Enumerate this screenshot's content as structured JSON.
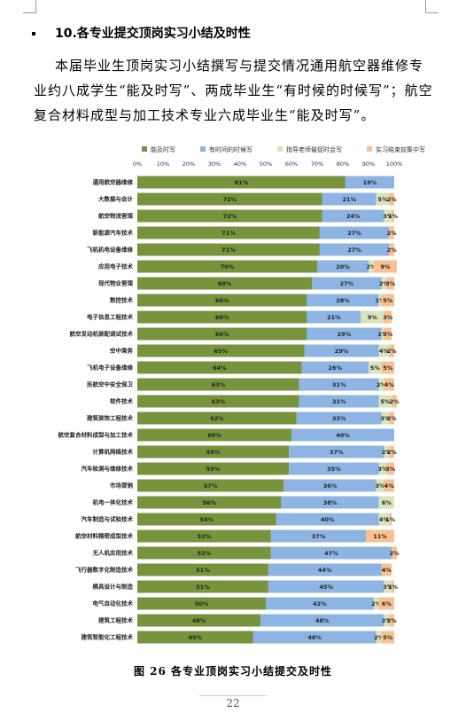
{
  "document": {
    "heading": "10.各专业提交顶岗实习小结及时性",
    "paragraph": "本届毕业生顶岗实习小结撰写与提交情况通用航空器维修专业约八成学生“能及时写”、两成毕业生“有时候的时候写”；航空复合材料成型与加工技术专业六成毕业生“能及时写”。",
    "caption": "图 26  各专业顶岗实习小结提交及时性",
    "page_number": "22"
  },
  "chart_data": {
    "type": "stacked-bar-horizontal",
    "legend": "top",
    "grid": false,
    "categories": [
      "通用航空器维修",
      "大数据与会计",
      "航空物流管理",
      "新能源汽车技术",
      "飞机机电设备维修",
      "应用电子技术",
      "现代物业管理",
      "数控技术",
      "电子信息工程技术",
      "航空发动机装配调试技术",
      "空中乘务",
      "飞机电子设备维修",
      "民航空中安全保卫",
      "软件技术",
      "建筑装饰工程技术",
      "航空复合材料成型与加工技术",
      "计算机网络技术",
      "汽车检测与维修技术",
      "市场营销",
      "机电一体化技术",
      "汽车制造与试验技术",
      "航空材料精密成型技术",
      "无人机应用技术",
      "飞行器数字化制造技术",
      "模具设计与制造",
      "电气自动化技术",
      "建筑工程技术",
      "建筑智能化工程技术"
    ],
    "xlim": [
      0,
      100
    ],
    "xticks": [
      {
        "value": 0,
        "label": "0%"
      },
      {
        "value": 10,
        "label": "10%"
      },
      {
        "value": 20,
        "label": "20%"
      },
      {
        "value": 30,
        "label": "30%"
      },
      {
        "value": 40,
        "label": "40%"
      },
      {
        "value": 50,
        "label": "50%"
      },
      {
        "value": 60,
        "label": "60%"
      },
      {
        "value": 70,
        "label": "70%"
      },
      {
        "value": 80,
        "label": "80%"
      },
      {
        "value": 90,
        "label": "90%"
      },
      {
        "value": 100,
        "label": "100%"
      }
    ],
    "series": [
      {
        "name": "能及时写",
        "color": "#77933C",
        "values": [
          81,
          72,
          72,
          71,
          71,
          70,
          68,
          66,
          66,
          66,
          65,
          64,
          63,
          63,
          62,
          60,
          59,
          59,
          57,
          56,
          54,
          52,
          52,
          51,
          51,
          50,
          48,
          45
        ],
        "value_labels": [
          "81%",
          "72%",
          "72%",
          "71%",
          "71%",
          "70%",
          "68%",
          "66%",
          "66%",
          "66%",
          "65%",
          "64%",
          "63%",
          "63%",
          "62%",
          "60%",
          "59%",
          "59%",
          "57%",
          "56%",
          "54%",
          "52%",
          "52%",
          "51%",
          "51%",
          "50%",
          "48%",
          "45%"
        ]
      },
      {
        "name": "有时间的时候写",
        "color": "#8DB4E2",
        "values": [
          19,
          21,
          24,
          27,
          27,
          20,
          27,
          28,
          21,
          29,
          29,
          26,
          31,
          31,
          33,
          40,
          37,
          35,
          36,
          38,
          40,
          37,
          47,
          44,
          45,
          42,
          48,
          48
        ],
        "value_labels": [
          "19%",
          "21%",
          "24%",
          "27%",
          "27%",
          "20%",
          "27%",
          "28%",
          "21%",
          "29%",
          "29%",
          "26%",
          "31%",
          "31%",
          "33%",
          "40%",
          "37%",
          "35%",
          "36%",
          "38%",
          "40%",
          "37%",
          "47%",
          "44%",
          "45%",
          "42%",
          "48%",
          "48%"
        ]
      },
      {
        "name": "指导老师催促时会写",
        "color": "#D7E4BD",
        "values": [
          null,
          5,
          3,
          null,
          null,
          2,
          2,
          1,
          9,
          1,
          4,
          5,
          2,
          5,
          3,
          null,
          2,
          3,
          3,
          6,
          4,
          null,
          null,
          null,
          3,
          2,
          2,
          2
        ],
        "value_labels": [
          null,
          "5%",
          "3%",
          null,
          null,
          "2%",
          "2%",
          "1%",
          "9%",
          "1%",
          "4%",
          "5%",
          "2%",
          "5%",
          "3%",
          null,
          "2%",
          "3%",
          "3%",
          "6%",
          "4%",
          null,
          null,
          null,
          "3%",
          "2%",
          "2%",
          "2%"
        ]
      },
      {
        "name": "实习结束前集中写",
        "color": "#FAC08F",
        "values": [
          null,
          2,
          1,
          2,
          2,
          9,
          3,
          5,
          3,
          3,
          2,
          5,
          4,
          2,
          2,
          null,
          2,
          3,
          4,
          null,
          1,
          11,
          2,
          4,
          1,
          6,
          2,
          5
        ],
        "value_labels": [
          null,
          "2%",
          "1%",
          "2%",
          "2%",
          "9%",
          "3%",
          "5%",
          "3%",
          "3%",
          "2%",
          "5%",
          "4%",
          "2%",
          "2%",
          null,
          "2%",
          "3%",
          "4%",
          null,
          "1%",
          "11%",
          "2%",
          "4%",
          "1%",
          "6%",
          "2%",
          "5%"
        ]
      }
    ]
  }
}
